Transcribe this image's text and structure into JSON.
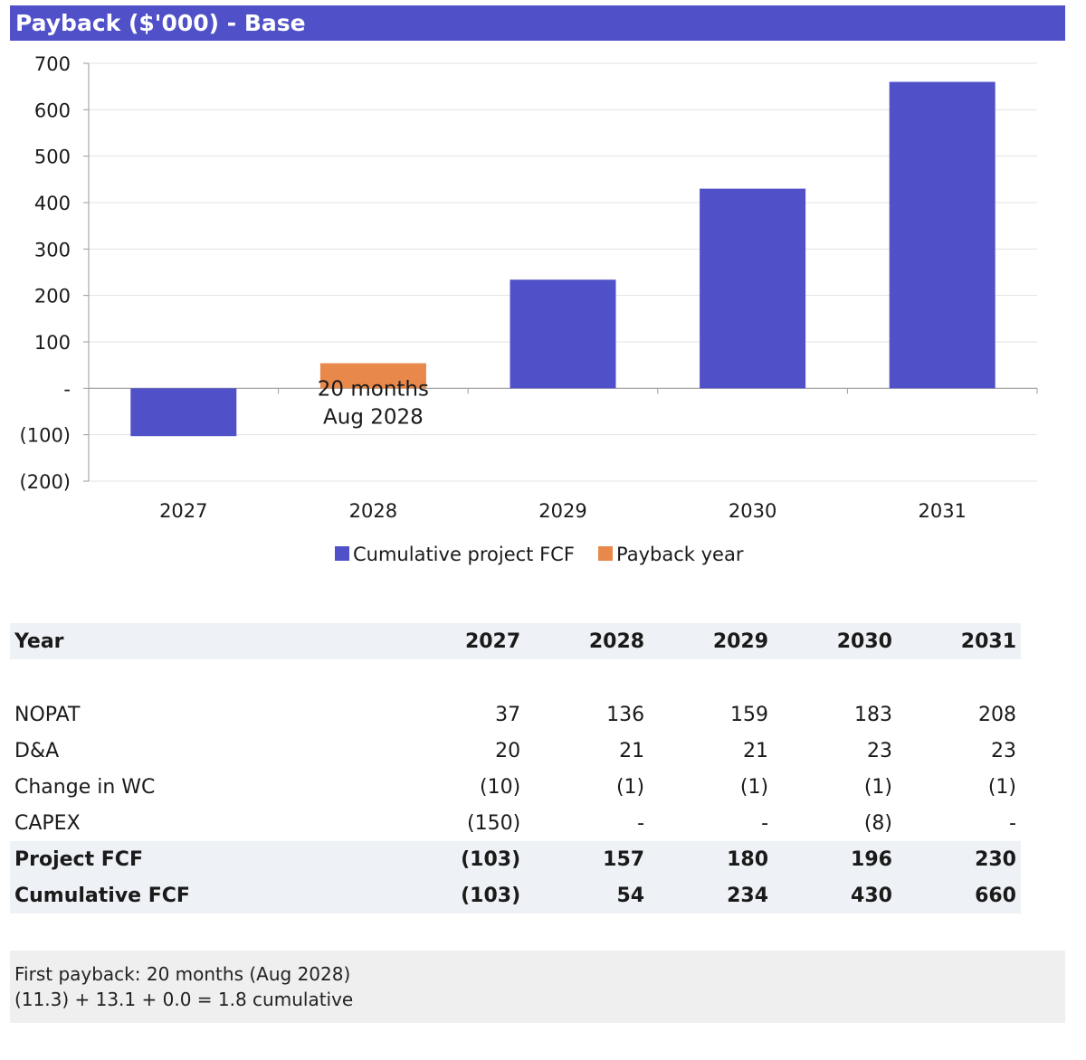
{
  "title": "Payback ($'000) - Base",
  "colors": {
    "title_bar": "#5050c8",
    "cumulative": "#5050c8",
    "payback": "#e8884a"
  },
  "chart_data": {
    "type": "bar",
    "categories": [
      "2027",
      "2028",
      "2029",
      "2030",
      "2031"
    ],
    "series": [
      {
        "name": "Cumulative project FCF",
        "values": [
          -103,
          null,
          234,
          430,
          660
        ],
        "color": "#5050c8"
      },
      {
        "name": "Payback year",
        "values": [
          null,
          54,
          null,
          null,
          null
        ],
        "color": "#e8884a"
      }
    ],
    "ylim": [
      -200,
      700
    ],
    "yticks": [
      -200,
      -100,
      0,
      100,
      200,
      300,
      400,
      500,
      600,
      700
    ],
    "ytick_labels": [
      "(200)",
      "(100)",
      "-",
      "100",
      "200",
      "300",
      "400",
      "500",
      "600",
      "700"
    ],
    "annotation": {
      "category": "2028",
      "lines": [
        "20 months",
        "Aug 2028"
      ]
    },
    "legend": [
      "Cumulative project FCF",
      "Payback year"
    ],
    "legend_position": "bottom",
    "grid": true
  },
  "table": {
    "header": {
      "label": "Year",
      "values": [
        "2027",
        "2028",
        "2029",
        "2030",
        "2031"
      ]
    },
    "rows": [
      {
        "label": "NOPAT",
        "values": [
          "37",
          "136",
          "159",
          "183",
          "208"
        ]
      },
      {
        "label": "D&A",
        "values": [
          "20",
          "21",
          "21",
          "23",
          "23"
        ]
      },
      {
        "label": "Change in WC",
        "values": [
          "(10)",
          "(1)",
          "(1)",
          "(1)",
          "(1)"
        ]
      },
      {
        "label": "CAPEX",
        "values": [
          "(150)",
          "-",
          "-",
          "(8)",
          "-"
        ]
      }
    ],
    "bold_rows": [
      {
        "label": "Project FCF",
        "values": [
          "(103)",
          "157",
          "180",
          "196",
          "230"
        ]
      },
      {
        "label": "Cumulative FCF",
        "values": [
          "(103)",
          "54",
          "234",
          "430",
          "660"
        ]
      }
    ]
  },
  "note": {
    "line1": "First payback: 20 months (Aug 2028)",
    "line2": "(11.3) + 13.1 + 0.0 = 1.8 cumulative"
  }
}
